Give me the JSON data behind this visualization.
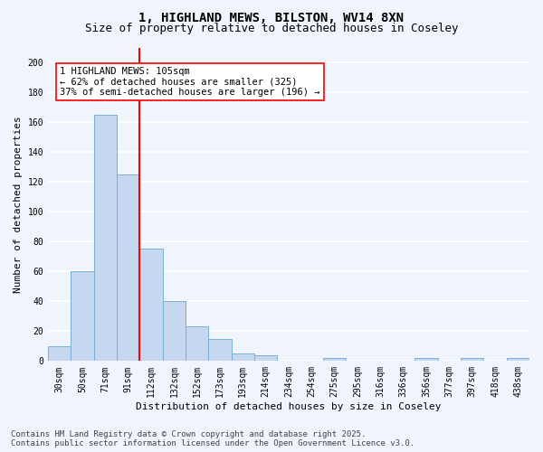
{
  "title_line1": "1, HIGHLAND MEWS, BILSTON, WV14 8XN",
  "title_line2": "Size of property relative to detached houses in Coseley",
  "xlabel": "Distribution of detached houses by size in Coseley",
  "ylabel": "Number of detached properties",
  "categories": [
    "30sqm",
    "50sqm",
    "71sqm",
    "91sqm",
    "112sqm",
    "132sqm",
    "152sqm",
    "173sqm",
    "193sqm",
    "214sqm",
    "234sqm",
    "254sqm",
    "275sqm",
    "295sqm",
    "316sqm",
    "336sqm",
    "356sqm",
    "377sqm",
    "397sqm",
    "418sqm",
    "438sqm"
  ],
  "values": [
    10,
    60,
    165,
    125,
    75,
    40,
    23,
    15,
    5,
    4,
    0,
    0,
    2,
    0,
    0,
    0,
    2,
    0,
    2,
    0,
    2
  ],
  "bar_color": "#c5d8f0",
  "bar_edge_color": "#7aafd4",
  "vline_x": 3.5,
  "vline_color": "red",
  "annotation_text": "1 HIGHLAND MEWS: 105sqm\n← 62% of detached houses are smaller (325)\n37% of semi-detached houses are larger (196) →",
  "annotation_box_color": "white",
  "annotation_box_edge_color": "red",
  "ylim": [
    0,
    210
  ],
  "yticks": [
    0,
    20,
    40,
    60,
    80,
    100,
    120,
    140,
    160,
    180,
    200
  ],
  "footer_line1": "Contains HM Land Registry data © Crown copyright and database right 2025.",
  "footer_line2": "Contains public sector information licensed under the Open Government Licence v3.0.",
  "background_color": "#f0f4fc",
  "grid_color": "#ffffff",
  "title_fontsize": 10,
  "subtitle_fontsize": 9,
  "axis_label_fontsize": 8,
  "tick_fontsize": 7,
  "annotation_fontsize": 7.5,
  "footer_fontsize": 6.5
}
